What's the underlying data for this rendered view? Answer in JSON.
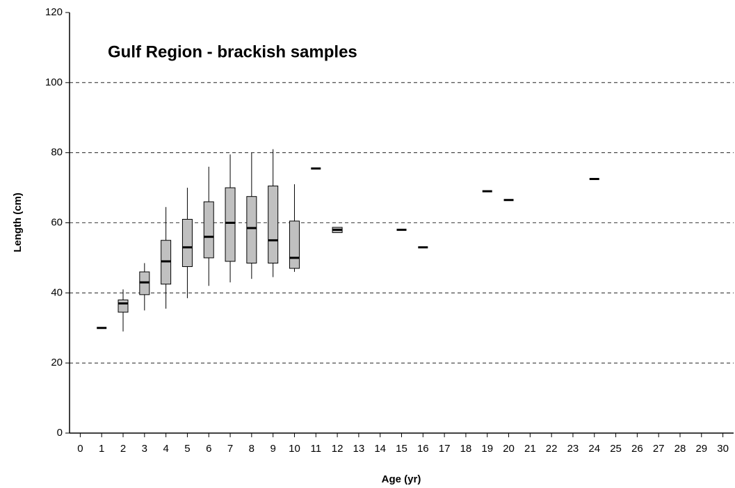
{
  "chart_data": {
    "type": "box",
    "title": "Gulf Region - brackish samples",
    "x_label": "Age (yr)",
    "y_label": "Length (cm)",
    "x": [
      1,
      2,
      3,
      4,
      5,
      6,
      7,
      8,
      9,
      10,
      11,
      12,
      15,
      16,
      19,
      20,
      24
    ],
    "min": [
      null,
      29,
      35,
      35.5,
      38.5,
      42,
      43,
      44,
      44.5,
      46,
      null,
      57.2,
      null,
      null,
      null,
      null,
      null
    ],
    "q1": [
      null,
      34.5,
      39.5,
      42.5,
      47.5,
      50,
      49,
      48.5,
      48.5,
      47,
      null,
      57.2,
      null,
      null,
      null,
      null,
      null
    ],
    "median": [
      30,
      37,
      43,
      49,
      53,
      56,
      60,
      58.5,
      55,
      50,
      75.5,
      58,
      58,
      53,
      69,
      66.5,
      72.5
    ],
    "q3": [
      null,
      38,
      46,
      55,
      61,
      66,
      70,
      67.5,
      70.5,
      60.5,
      null,
      58.7,
      null,
      null,
      null,
      null,
      null
    ],
    "max": [
      null,
      41,
      48.5,
      64.5,
      70,
      76,
      79.5,
      80,
      81,
      71,
      null,
      58.7,
      null,
      null,
      null,
      null,
      null
    ],
    "box_color": "#c0c0c0",
    "xlim": [
      -0.5,
      30.5
    ],
    "xticks": [
      0,
      1,
      2,
      3,
      4,
      5,
      6,
      7,
      8,
      9,
      10,
      11,
      12,
      13,
      14,
      15,
      16,
      17,
      18,
      19,
      20,
      21,
      22,
      23,
      24,
      25,
      26,
      27,
      28,
      29,
      30
    ],
    "ylim": [
      0,
      120
    ],
    "yticks": [
      0,
      20,
      40,
      60,
      80,
      100,
      120
    ],
    "grid": true
  }
}
